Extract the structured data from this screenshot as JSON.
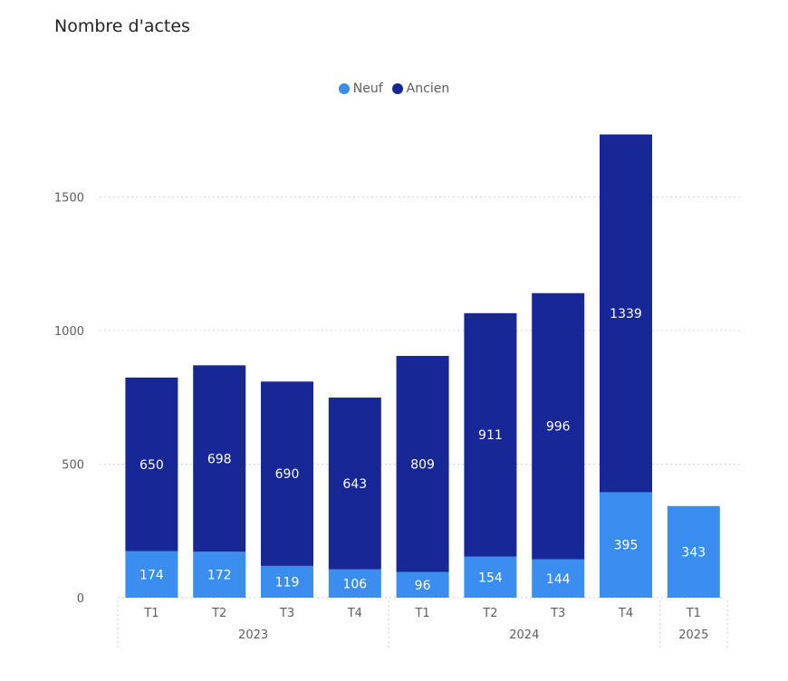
{
  "chart_data": {
    "type": "bar",
    "stacked": true,
    "title": "Nombre d'actes",
    "colors": {
      "Neuf": "#3b8def",
      "Ancien": "#172896"
    },
    "years": [
      {
        "label": "2023",
        "quarters": [
          "T1",
          "T2",
          "T3",
          "T4"
        ]
      },
      {
        "label": "2024",
        "quarters": [
          "T1",
          "T2",
          "T3",
          "T4"
        ]
      },
      {
        "label": "2025",
        "quarters": [
          "T1"
        ]
      }
    ],
    "categories": [
      "T1",
      "T2",
      "T3",
      "T4",
      "T1",
      "T2",
      "T3",
      "T4",
      "T1"
    ],
    "series": [
      {
        "name": "Neuf",
        "values": [
          174,
          172,
          119,
          106,
          96,
          154,
          144,
          395,
          343
        ]
      },
      {
        "name": "Ancien",
        "values": [
          650,
          698,
          690,
          643,
          809,
          911,
          996,
          1339,
          0
        ]
      }
    ],
    "yticks": [
      0,
      500,
      1000,
      1500
    ],
    "ylim": [
      0,
      1800
    ],
    "legend": "top-center",
    "grid": true
  }
}
